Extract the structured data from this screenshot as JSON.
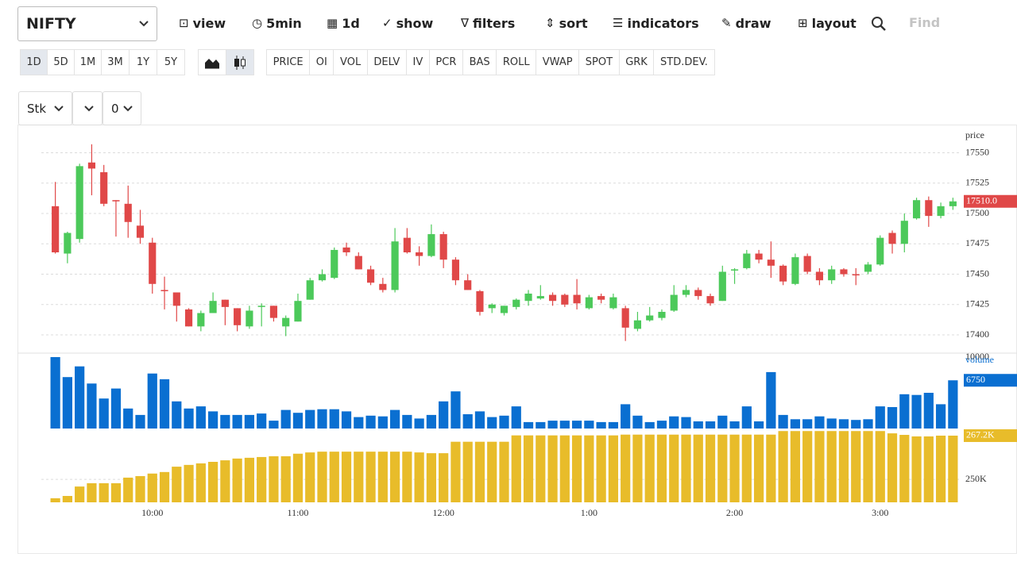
{
  "toolbar": {
    "symbol": "NIFTY",
    "items": [
      "view",
      "5min",
      "1d",
      "show",
      "filters",
      "sort",
      "indicators",
      "draw",
      "layout"
    ],
    "search_placeholder": "Find"
  },
  "ranges": [
    "1D",
    "5D",
    "1M",
    "3M",
    "1Y",
    "5Y"
  ],
  "panels": [
    "PRICE",
    "OI",
    "VOL",
    "DELV",
    "IV",
    "PCR",
    "BAS",
    "ROLL",
    "VWAP",
    "SPOT",
    "GRK",
    "STD.DEV."
  ],
  "selects": [
    "Stk",
    "0"
  ],
  "chart_data": [
    {
      "type": "candlestick",
      "y_label": "price",
      "up_color": "#4cc95a",
      "down_color": "#e04848",
      "open": [
        17506,
        17467,
        17479,
        17542,
        17534,
        17511,
        17508,
        17490,
        17476,
        17437,
        17435,
        17421,
        17407,
        17418,
        17429,
        17422,
        17407,
        17423,
        17424,
        17407,
        17411,
        17429,
        17445,
        17447,
        17472,
        17465,
        17454,
        17442,
        17437,
        17480,
        17468,
        17465,
        17483,
        17462,
        17445,
        17436,
        17422,
        17418,
        17423,
        17428,
        17430,
        17433,
        17433,
        17433,
        17422,
        17432,
        17422,
        17422,
        17405,
        17412,
        17414,
        17420,
        17433,
        17437,
        17432,
        17428,
        17453,
        17455,
        17467,
        17462,
        17457,
        17442,
        17465,
        17452,
        17445,
        17454,
        17450,
        17452,
        17458,
        17484,
        17475,
        17496,
        17511,
        17498,
        17506
      ],
      "high": [
        17526,
        17485,
        17541,
        17557,
        17540,
        17511,
        17523,
        17503,
        17480,
        17448,
        17435,
        17422,
        17420,
        17435,
        17429,
        17422,
        17424,
        17426,
        17424,
        17416,
        17434,
        17447,
        17454,
        17472,
        17476,
        17468,
        17457,
        17447,
        17488,
        17488,
        17473,
        17491,
        17485,
        17464,
        17450,
        17437,
        17426,
        17424,
        17430,
        17437,
        17441,
        17435,
        17434,
        17446,
        17433,
        17434,
        17434,
        17424,
        17419,
        17423,
        17421,
        17441,
        17441,
        17439,
        17434,
        17457,
        17455,
        17470,
        17470,
        17477,
        17458,
        17467,
        17467,
        17455,
        17457,
        17455,
        17455,
        17460,
        17482,
        17486,
        17500,
        17513,
        17514,
        17509,
        17513
      ],
      "low": [
        17467,
        17459,
        17476,
        17515,
        17506,
        17481,
        17480,
        17475,
        17434,
        17421,
        17411,
        17407,
        17403,
        17418,
        17408,
        17403,
        17405,
        17407,
        17411,
        17399,
        17411,
        17429,
        17444,
        17446,
        17465,
        17454,
        17441,
        17435,
        17435,
        17467,
        17457,
        17464,
        17455,
        17441,
        17437,
        17416,
        17418,
        17416,
        17421,
        17424,
        17429,
        17424,
        17423,
        17421,
        17421,
        17426,
        17421,
        17395,
        17403,
        17411,
        17412,
        17419,
        17431,
        17429,
        17424,
        17428,
        17442,
        17454,
        17459,
        17447,
        17441,
        17441,
        17450,
        17441,
        17442,
        17448,
        17441,
        17450,
        17457,
        17467,
        17468,
        17495,
        17489,
        17496,
        17503
      ],
      "close": [
        17468,
        17484,
        17539,
        17537,
        17508,
        17510,
        17493,
        17480,
        17442,
        17436,
        17424,
        17407,
        17418,
        17428,
        17423,
        17408,
        17420,
        17424,
        17414,
        17414,
        17428,
        17445,
        17450,
        17470,
        17468,
        17454,
        17443,
        17437,
        17477,
        17468,
        17465,
        17483,
        17462,
        17445,
        17437,
        17419,
        17425,
        17424,
        17429,
        17434,
        17432,
        17428,
        17425,
        17426,
        17431,
        17429,
        17431,
        17406,
        17412,
        17416,
        17419,
        17433,
        17437,
        17432,
        17426,
        17452,
        17454,
        17467,
        17462,
        17457,
        17444,
        17464,
        17452,
        17445,
        17454,
        17450,
        17449,
        17458,
        17480,
        17475,
        17494,
        17511,
        17498,
        17506,
        17510
      ],
      "last_label": "17510.0",
      "ylim": [
        17385,
        17568
      ],
      "yticks": [
        17400,
        17425,
        17450,
        17475,
        17500,
        17525,
        17550
      ],
      "grid": true,
      "xlim": [
        -0.5,
        74.5
      ],
      "xticks": [
        {
          "value": 8,
          "label": "10:00"
        },
        {
          "value": 20,
          "label": "11:00"
        },
        {
          "value": 32,
          "label": "12:00"
        },
        {
          "value": 44,
          "label": "1:00"
        },
        {
          "value": 56,
          "label": "2:00"
        },
        {
          "value": 68,
          "label": "3:00"
        }
      ]
    },
    {
      "type": "bar",
      "y_label": "volume",
      "color": "#0a6fd1",
      "values": [
        10000,
        7200,
        8700,
        6300,
        4200,
        5600,
        2800,
        1900,
        7700,
        6900,
        3800,
        2800,
        3100,
        2400,
        1900,
        1900,
        1900,
        2100,
        1100,
        2600,
        2200,
        2600,
        2700,
        2700,
        2400,
        1600,
        1800,
        1700,
        2600,
        1900,
        1400,
        1900,
        3800,
        5200,
        2000,
        2400,
        1600,
        1800,
        3100,
        900,
        900,
        1100,
        1100,
        1100,
        1100,
        900,
        900,
        3400,
        1800,
        900,
        1100,
        1700,
        1600,
        1000,
        1000,
        1800,
        1000,
        3100,
        1000,
        7900,
        1900,
        1300,
        1300,
        1700,
        1400,
        1300,
        1200,
        1300,
        3100,
        3000,
        4800,
        4700,
        5000,
        3400,
        6750
      ],
      "ylim": [
        0,
        10000
      ],
      "yticks": [
        10000
      ]
    },
    {
      "type": "bar",
      "color": "#e8bc2a",
      "values": [
        242600,
        243500,
        247200,
        248500,
        248500,
        248500,
        250700,
        251300,
        252300,
        252900,
        255000,
        255700,
        256300,
        256900,
        257500,
        258200,
        258500,
        258800,
        259100,
        259100,
        260100,
        260600,
        260900,
        260900,
        260900,
        260900,
        260900,
        260900,
        260900,
        260900,
        260600,
        260300,
        260300,
        264800,
        264800,
        264800,
        264800,
        264800,
        267300,
        267300,
        267300,
        267300,
        267300,
        267300,
        267300,
        267300,
        267300,
        267600,
        267600,
        267600,
        267600,
        267600,
        267600,
        267600,
        267600,
        267600,
        267600,
        267600,
        267600,
        267600,
        269000,
        269000,
        269000,
        269000,
        269000,
        269000,
        269000,
        269000,
        269000,
        268100,
        267500,
        266900,
        266900,
        267200,
        267200
      ],
      "last_label": "267.2K",
      "ylim": [
        241000,
        270000
      ],
      "yticks": [
        {
          "value": 250000,
          "label": "250K"
        }
      ],
      "grid": true
    }
  ]
}
